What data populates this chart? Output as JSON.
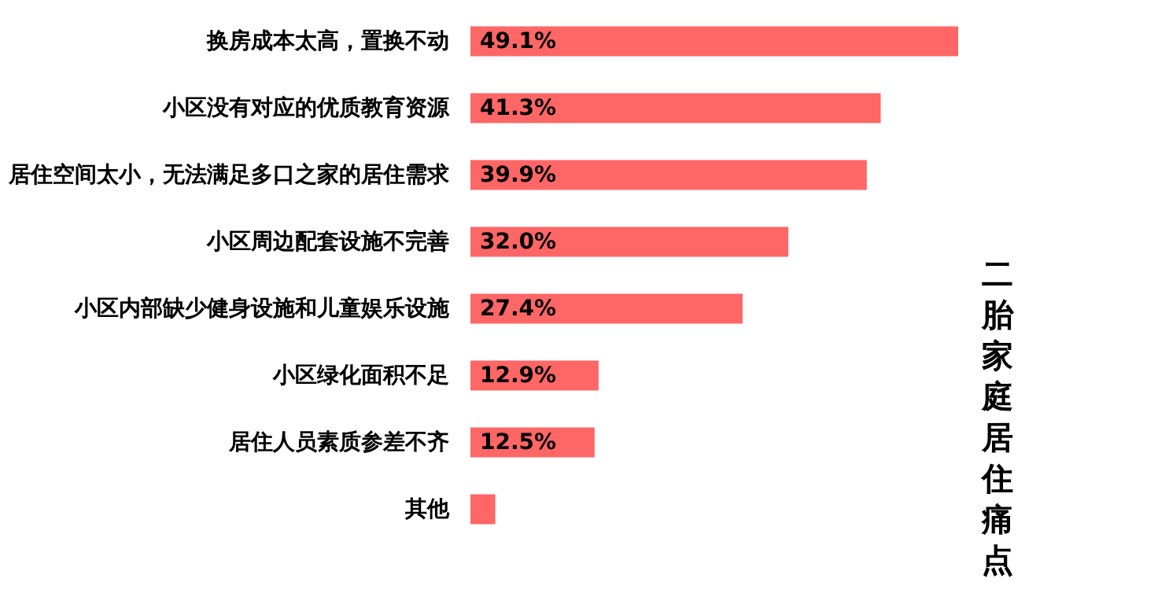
{
  "chart_data": {
    "type": "bar",
    "orientation": "horizontal",
    "title": "二胎家庭居住痛点",
    "categories": [
      "换房成本太高，置换不动",
      "小区没有对应的优质教育资源",
      "居住空间太小，无法满足多口之家的居住需求",
      "小区周边配套设施不完善",
      "小区内部缺少健身设施和儿童娱乐设施",
      "小区绿化面积不足",
      "居住人员素质参差不齐",
      "其他"
    ],
    "values": [
      49.1,
      41.3,
      39.9,
      32.0,
      27.4,
      12.9,
      12.5,
      2.5
    ],
    "value_labels": [
      "49.1%",
      "41.3%",
      "39.9%",
      "32.0%",
      "27.4%",
      "12.9%",
      "12.5%",
      null
    ],
    "color": "#ff6666",
    "grid": false,
    "tick_labels": "y"
  }
}
